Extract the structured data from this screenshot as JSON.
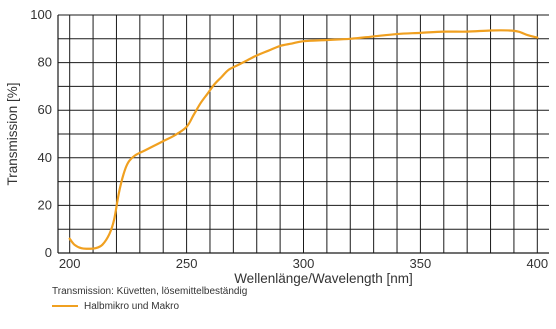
{
  "chart_data": {
    "type": "line",
    "xlabel": "Wellenlänge/Wavelength [nm]",
    "ylabel": "Transmission [%]",
    "xlim": [
      195,
      405
    ],
    "ylim": [
      0,
      100
    ],
    "x_ticks": [
      200,
      250,
      300,
      350,
      400
    ],
    "y_ticks": [
      0,
      20,
      40,
      60,
      80,
      100
    ],
    "grid": true,
    "note": "Transmission: Küvetten, lösemittelbeständig",
    "series": [
      {
        "name": "Halbmikro und Makro",
        "color": "#f0a020",
        "x": [
          200,
          202,
          205,
          208,
          211,
          214,
          217,
          219,
          221,
          223,
          225,
          228,
          232,
          236,
          240,
          245,
          250,
          253,
          256,
          259,
          262,
          265,
          268,
          272,
          276,
          280,
          285,
          290,
          295,
          300,
          310,
          320,
          330,
          340,
          350,
          360,
          370,
          380,
          388,
          392,
          396,
          400
        ],
        "y": [
          6,
          3.5,
          2,
          1.8,
          2,
          3.5,
          8,
          14,
          25,
          33,
          38,
          41,
          43,
          45,
          47,
          49.5,
          53,
          58,
          63,
          67,
          71,
          74,
          77,
          79,
          81,
          83,
          85,
          87,
          88,
          89,
          89.5,
          90,
          91,
          92,
          92.5,
          93,
          93,
          93.5,
          93.5,
          93,
          91.5,
          90.5
        ]
      }
    ]
  }
}
